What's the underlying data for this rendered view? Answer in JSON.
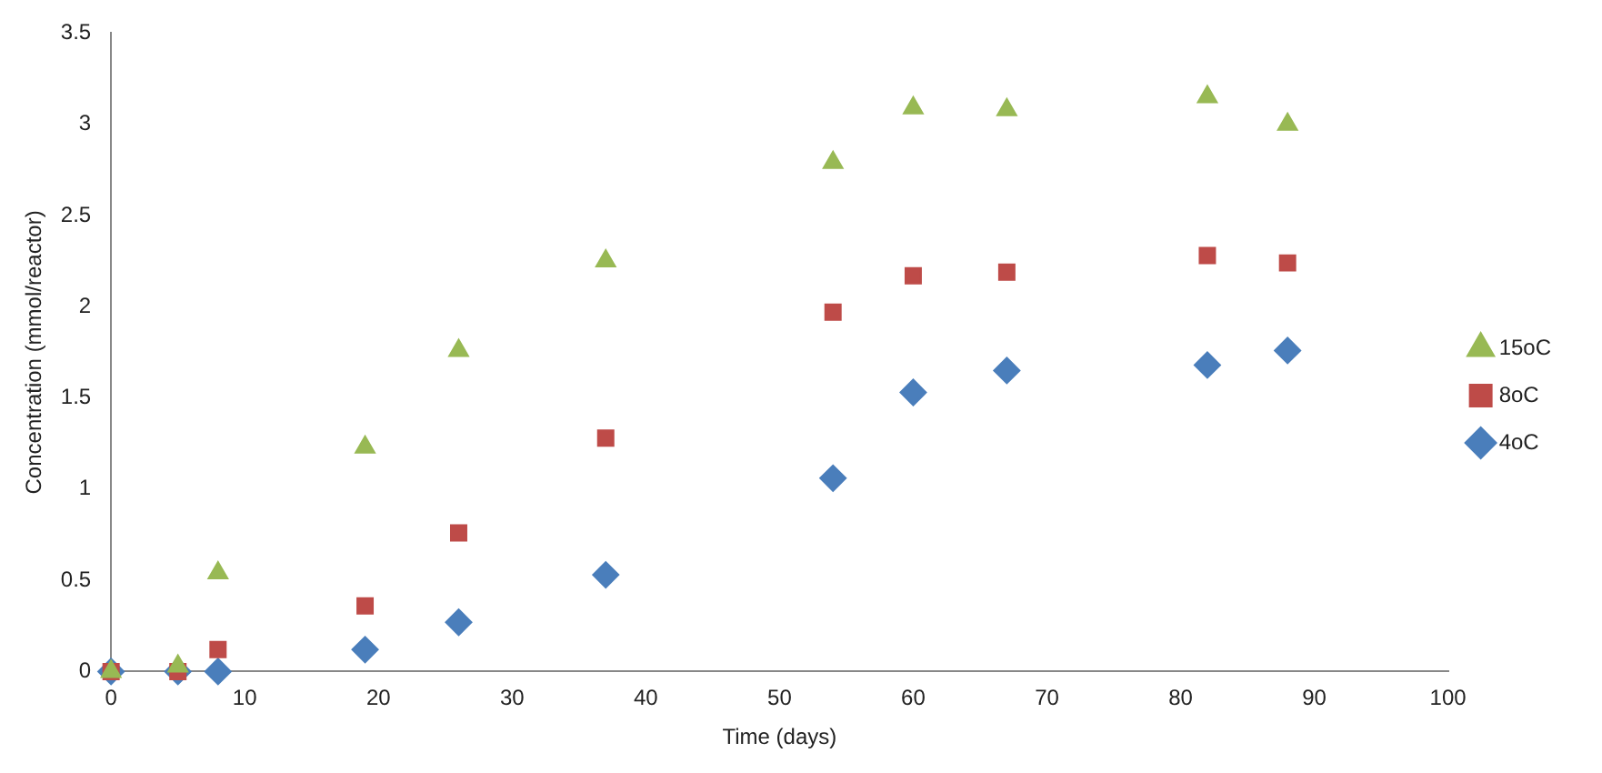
{
  "chart_data": {
    "type": "scatter",
    "xlabel": "Time (days)",
    "ylabel": "Concentration (mmol/reactor)",
    "xlim": [
      0,
      100
    ],
    "xticks": [
      0,
      10,
      20,
      30,
      40,
      50,
      60,
      70,
      80,
      90,
      100
    ],
    "ylim": [
      0,
      3.5
    ],
    "yticks": [
      0,
      0.5,
      1,
      1.5,
      2,
      2.5,
      3,
      3.5
    ],
    "grid": false,
    "legend": "right",
    "x": [
      0,
      5,
      8,
      19,
      26,
      37,
      54,
      60,
      67,
      82,
      88
    ],
    "series": [
      {
        "name": "4oC",
        "color": "#4a7ebb",
        "marker": "diamond",
        "values": [
          0,
          0,
          0,
          0.12,
          0.27,
          0.53,
          1.06,
          1.53,
          1.65,
          1.68,
          1.76
        ]
      },
      {
        "name": "8oC",
        "color": "#be4b48",
        "marker": "square",
        "values": [
          0,
          0,
          0.12,
          0.36,
          0.76,
          1.28,
          1.97,
          2.17,
          2.19,
          2.28,
          2.24
        ]
      },
      {
        "name": "15oC",
        "color": "#98b954",
        "marker": "triangle",
        "values": [
          0,
          0.03,
          0.54,
          1.23,
          1.76,
          2.25,
          2.79,
          3.09,
          3.08,
          3.15,
          3.0
        ]
      }
    ]
  }
}
